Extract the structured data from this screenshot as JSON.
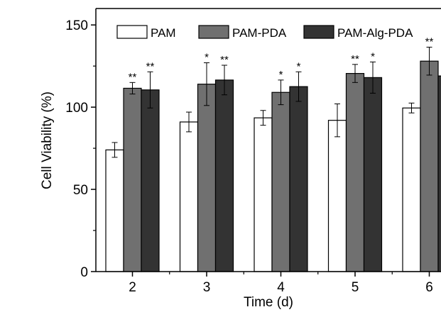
{
  "chart_data": {
    "type": "bar",
    "xlabel": "Time (d)",
    "ylabel": "Cell Viability (%)",
    "categories": [
      "2",
      "3",
      "4",
      "5",
      "6"
    ],
    "ylim": [
      0,
      160
    ],
    "yticks": [
      0,
      50,
      100,
      150
    ],
    "legend_position": "top",
    "grid": false,
    "series": [
      {
        "name": "PAM",
        "color": "#ffffff",
        "values": [
          74,
          91,
          93.5,
          92,
          99.5
        ],
        "errors": [
          4.5,
          6,
          4.5,
          10,
          3
        ],
        "significance": [
          "",
          "",
          "",
          "",
          ""
        ]
      },
      {
        "name": "PAM-PDA",
        "color": "#707070",
        "values": [
          111.5,
          114,
          109,
          120.5,
          128
        ],
        "errors": [
          3.5,
          13,
          7.5,
          5.5,
          8.5
        ],
        "significance": [
          "**",
          "*",
          "*",
          "**",
          "**"
        ]
      },
      {
        "name": "PAM-Alg-PDA",
        "color": "#333333",
        "values": [
          110.5,
          116.5,
          112.5,
          118,
          119
        ],
        "errors": [
          11,
          9,
          9,
          9.5,
          5.5
        ],
        "significance": [
          "**",
          "**",
          "*",
          "*",
          "**"
        ]
      }
    ]
  }
}
